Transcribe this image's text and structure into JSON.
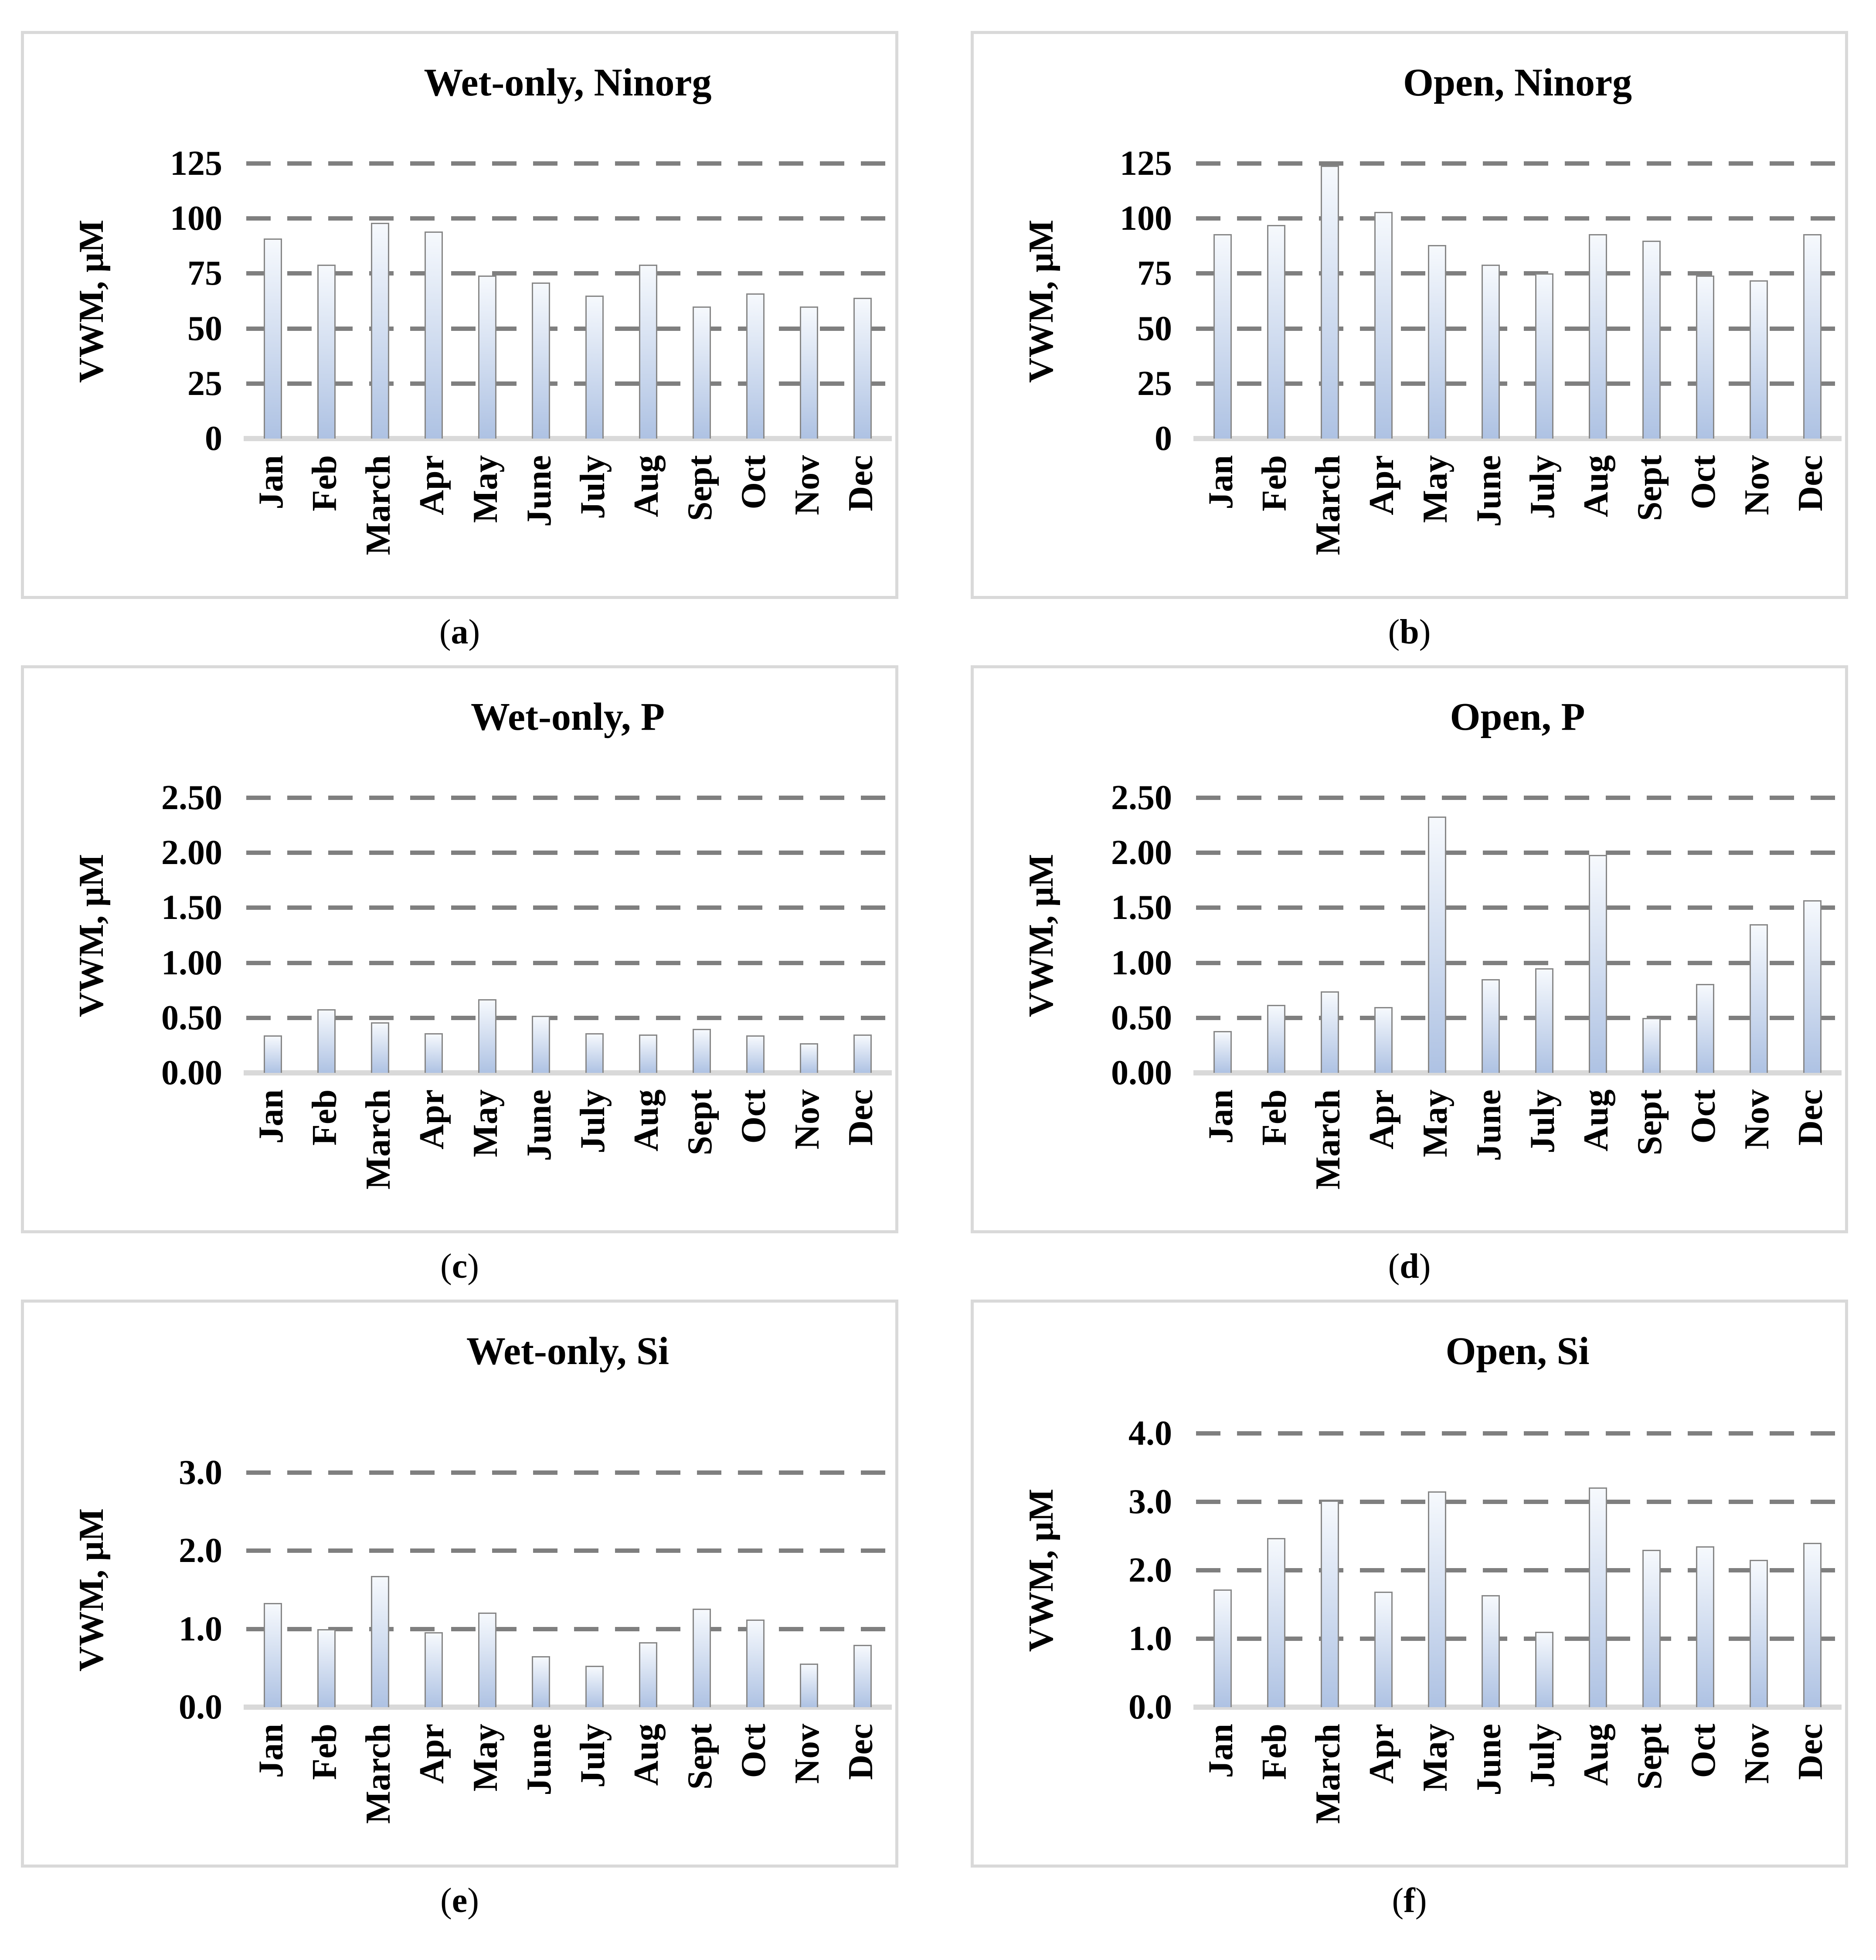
{
  "colors": {
    "panel_frame": "#d9d9d9",
    "gridline": "#7f7f7f",
    "bar_top": "#f6f9fd",
    "bar_bottom": "#aec2e3",
    "bar_border": "#878787",
    "text": "#000000",
    "background": "#ffffff"
  },
  "chart_data": [
    {
      "id": "a",
      "type": "bar",
      "title": "Wet-only, Ninorg",
      "ylabel": "VWM, μM",
      "xlabel": "",
      "caption_prefix": "(",
      "caption_letter": "a",
      "caption_suffix": ")",
      "categories": [
        "Jan",
        "Feb",
        "March",
        "Apr",
        "May",
        "June",
        "July",
        "Aug",
        "Sept",
        "Oct",
        "Nov",
        "Dec"
      ],
      "values": [
        91,
        79,
        98,
        94,
        74,
        71,
        65,
        79,
        60,
        66,
        60,
        64
      ],
      "ylim": [
        0,
        125
      ],
      "yticks": [
        0,
        25,
        50,
        75,
        100,
        125
      ],
      "ytick_labels": [
        "0",
        "25",
        "50",
        "75",
        "100",
        "125"
      ],
      "grid": "dashed-horizontal",
      "legend": "none",
      "top_frac": 0.228
    },
    {
      "id": "b",
      "type": "bar",
      "title": "Open, Ninorg",
      "ylabel": "VWM, μM",
      "xlabel": "",
      "caption_prefix": "(",
      "caption_letter": "b",
      "caption_suffix": ")",
      "categories": [
        "Jan",
        "Feb",
        "March",
        "Apr",
        "May",
        "June",
        "July",
        "Aug",
        "Sept",
        "Oct",
        "Nov",
        "Dec"
      ],
      "values": [
        93,
        97,
        124,
        103,
        88,
        79,
        75,
        93,
        90,
        74,
        72,
        93
      ],
      "ylim": [
        0,
        125
      ],
      "yticks": [
        0,
        25,
        50,
        75,
        100,
        125
      ],
      "ytick_labels": [
        "0",
        "25",
        "50",
        "75",
        "100",
        "125"
      ],
      "grid": "dashed-horizontal",
      "legend": "none",
      "top_frac": 0.228
    },
    {
      "id": "c",
      "type": "bar",
      "title": "Wet-only, P",
      "ylabel": "VWM, μM",
      "xlabel": "",
      "caption_prefix": "(",
      "caption_letter": "c",
      "caption_suffix": ")",
      "categories": [
        "Jan",
        "Feb",
        "March",
        "Apr",
        "May",
        "June",
        "July",
        "Aug",
        "Sept",
        "Oct",
        "Nov",
        "Dec"
      ],
      "values": [
        0.34,
        0.58,
        0.46,
        0.36,
        0.67,
        0.52,
        0.36,
        0.35,
        0.4,
        0.34,
        0.27,
        0.35
      ],
      "ylim": [
        0,
        2.5
      ],
      "yticks": [
        0,
        0.5,
        1.0,
        1.5,
        2.0,
        2.5
      ],
      "ytick_labels": [
        "0.00",
        "0.50",
        "1.00",
        "1.50",
        "2.00",
        "2.50"
      ],
      "grid": "dashed-horizontal",
      "legend": "none",
      "top_frac": 0.228
    },
    {
      "id": "d",
      "type": "bar",
      "title": "Open, P",
      "ylabel": "VWM, μM",
      "xlabel": "",
      "caption_prefix": "(",
      "caption_letter": "d",
      "caption_suffix": ")",
      "categories": [
        "Jan",
        "Feb",
        "March",
        "Apr",
        "May",
        "June",
        "July",
        "Aug",
        "Sept",
        "Oct",
        "Nov",
        "Dec"
      ],
      "values": [
        0.38,
        0.62,
        0.74,
        0.6,
        2.33,
        0.85,
        0.95,
        1.98,
        0.5,
        0.81,
        1.35,
        1.57
      ],
      "ylim": [
        0,
        2.5
      ],
      "yticks": [
        0,
        0.5,
        1.0,
        1.5,
        2.0,
        2.5
      ],
      "ytick_labels": [
        "0.00",
        "0.50",
        "1.00",
        "1.50",
        "2.00",
        "2.50"
      ],
      "grid": "dashed-horizontal",
      "legend": "none",
      "top_frac": 0.228
    },
    {
      "id": "e",
      "type": "bar",
      "title": "Wet-only, Si",
      "ylabel": "VWM, μM",
      "xlabel": "",
      "caption_prefix": "(",
      "caption_letter": "e",
      "caption_suffix": ")",
      "categories": [
        "Jan",
        "Feb",
        "March",
        "Apr",
        "May",
        "June",
        "July",
        "Aug",
        "Sept",
        "Oct",
        "Nov",
        "Dec"
      ],
      "values": [
        1.33,
        1.0,
        1.68,
        0.96,
        1.21,
        0.65,
        0.53,
        0.83,
        1.26,
        1.12,
        0.56,
        0.8
      ],
      "ylim": [
        0,
        3.0
      ],
      "yticks": [
        0,
        1.0,
        2.0,
        3.0
      ],
      "ytick_labels": [
        "0.0",
        "1.0",
        "2.0",
        "3.0"
      ],
      "grid": "dashed-horizontal",
      "legend": "none",
      "top_frac": 0.299
    },
    {
      "id": "f",
      "type": "bar",
      "title": "Open, Si",
      "ylabel": "VWM, μM",
      "xlabel": "",
      "caption_prefix": "(",
      "caption_letter": "f",
      "caption_suffix": ")",
      "categories": [
        "Jan",
        "Feb",
        "March",
        "Apr",
        "May",
        "June",
        "July",
        "Aug",
        "Sept",
        "Oct",
        "Nov",
        "Dec"
      ],
      "values": [
        1.72,
        2.47,
        3.02,
        1.69,
        3.15,
        1.64,
        1.1,
        3.21,
        2.3,
        2.35,
        2.15,
        2.4
      ],
      "ylim": [
        0,
        4.0
      ],
      "yticks": [
        0,
        1.0,
        2.0,
        3.0,
        4.0
      ],
      "ytick_labels": [
        "0.0",
        "1.0",
        "2.0",
        "3.0",
        "4.0"
      ],
      "grid": "dashed-horizontal",
      "legend": "none",
      "top_frac": 0.23
    }
  ]
}
